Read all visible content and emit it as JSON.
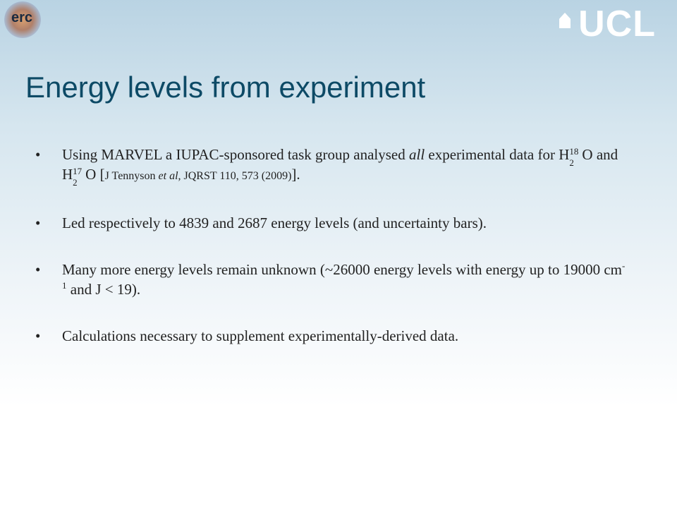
{
  "logos": {
    "left": "erc",
    "right": "UCL"
  },
  "title": "Energy levels from experiment",
  "bullets": [
    [
      "Using MARVEL a IUPAC-sponsored task group analysed ",
      "all",
      " experimental data for H",
      "2",
      "18",
      "O and H",
      "2",
      "17",
      "O [",
      "J Tennyson ",
      "et al",
      ", JQRST 110, 573 (2009)",
      "]."
    ],
    [
      "Led respectively to 4839 and 2687 energy levels (and uncertainty bars)."
    ],
    [
      "Many more energy levels remain unknown (~26000 energy levels with energy up to 19000 cm",
      "-1",
      " and J < 19)."
    ],
    [
      "Calculations necessary to supplement experimentally-derived data."
    ]
  ]
}
